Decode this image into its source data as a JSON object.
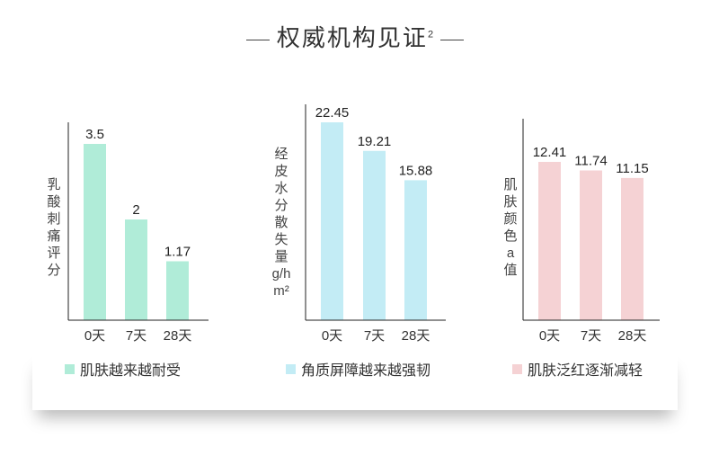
{
  "title": {
    "text": "权威机构见证",
    "superscript": "2"
  },
  "chart_data": [
    {
      "type": "bar",
      "categories": [
        "0天",
        "7天",
        "28天"
      ],
      "values": [
        3.5,
        2,
        1.17
      ],
      "value_labels": [
        "3.5",
        "2",
        "1.17"
      ],
      "ylabel": "乳酸刺痛评分",
      "color": "#b0ecd8",
      "legend": "肌肤越来越耐受",
      "ylim": [
        0,
        3.5
      ]
    },
    {
      "type": "bar",
      "categories": [
        "0天",
        "7天",
        "28天"
      ],
      "values": [
        22.45,
        19.21,
        15.88
      ],
      "value_labels": [
        "22.45",
        "19.21",
        "15.88"
      ],
      "ylabel": "经皮水分散失量g/hm²",
      "color": "#c3ecf5",
      "legend": "角质屏障越来越强韧",
      "ylim": [
        0,
        22.45
      ]
    },
    {
      "type": "bar",
      "categories": [
        "0天",
        "7天",
        "28天"
      ],
      "values": [
        12.41,
        11.74,
        11.15
      ],
      "value_labels": [
        "12.41",
        "11.74",
        "11.15"
      ],
      "ylabel": "肌肤颜色a值",
      "color": "#f5d2d4",
      "legend": "肌肤泛红逐渐减轻",
      "ylim": [
        0,
        12.41
      ]
    }
  ]
}
